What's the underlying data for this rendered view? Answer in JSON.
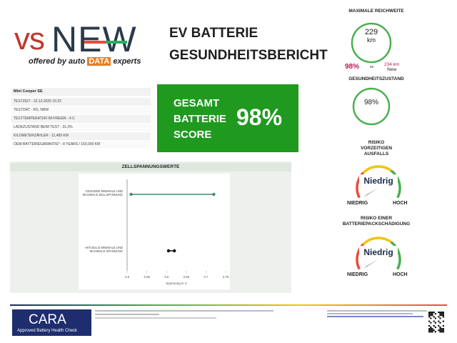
{
  "logo": {
    "vs": "vs",
    "new": "NEW",
    "offered_by": "offered by",
    "auto": "auto",
    "data": "DATA",
    "experts": "experts"
  },
  "header": {
    "title_line1": "EV BATTERIE",
    "title_line2": "GESUNDHEITSBERICHT"
  },
  "info": {
    "model": "Mini Cooper SE",
    "rows": [
      "TESTZEIT - 22.12.2025 15:22",
      "TESTORT - RS, NRW",
      "TESTTEMPERATUR IM FREIEN - 4 C",
      "LADEZUSTAND BEIM TEST - 31,3%",
      "KILOMETERZÄHLER - 11,489 KM",
      "OEM-BATTERIEGARANTIE* - 8 YEARS / 160,000 KM"
    ]
  },
  "score": {
    "line1": "GESAMT",
    "line2": "BATTERIE",
    "line3": "SCORE",
    "value": "98%"
  },
  "cell_voltage_chart": {
    "title": "ZELLSPANNUNGSWERTE",
    "categories": [
      "GESUNDE MINIMALE UND MAXIMALE ZELLSPANNUNG",
      "AKTUELLE MINIMALE UND MAXIMALE SPANNUNG"
    ],
    "ranges": [
      [
        3.51,
        3.72
      ],
      [
        3.605,
        3.62
      ]
    ],
    "colors": [
      "#3f8f6a",
      "#111111"
    ],
    "xlim": [
      3.5,
      3.75
    ],
    "xticks": [
      3.5,
      3.55,
      3.6,
      3.65,
      3.7,
      3.75
    ],
    "xlabel": "Spannung in V"
  },
  "range": {
    "title": "MAXIMALE REICHWEITE",
    "value": "229",
    "unit": "km",
    "percent": "98%",
    "vs": "vs",
    "new_value": "234 km",
    "new_label": "New"
  },
  "health": {
    "title": "GESUNDHEITSZUSTAND",
    "value": "98%"
  },
  "risk_failure": {
    "title_line1": "RISIKO",
    "title_line2": "VORZEITIGEN",
    "title_line3": "AUSFALLS",
    "level": "Niedrig",
    "low": "NIEDRIG",
    "high": "HOCH"
  },
  "risk_damage": {
    "title_line1": "RISIKO EINER",
    "title_line2": "BATTERIEPACKSCHÄDIGUNG",
    "level": "Niedrig",
    "low": "NIEDRIG",
    "high": "HOCH"
  },
  "footer": {
    "cara": "CARA",
    "cara_sub": "Approved Battery Health Check"
  }
}
